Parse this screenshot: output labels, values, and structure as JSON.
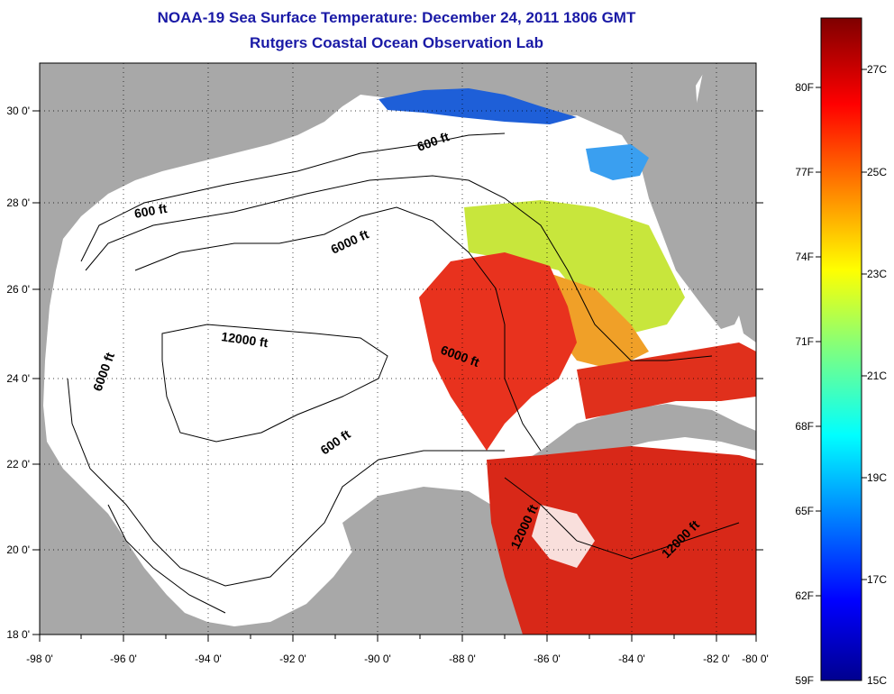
{
  "title": "NOAA-19 Sea Surface Temperature:  December 24, 2011 1806 GMT",
  "subtitle": "Rutgers Coastal Ocean Observation Lab",
  "lon_labels": [
    "-98 0'",
    "-96 0'",
    "-94 0'",
    "-92 0'",
    "-90 0'",
    "-88 0'",
    "-86 0'",
    "-84 0'",
    "-82 0'",
    "-80 0'"
  ],
  "lat_labels": [
    "30 0'",
    "28 0'",
    "26 0'",
    "24 0'",
    "22 0'",
    "20 0'",
    "18 0'"
  ],
  "isobaths": [
    {
      "text": "600 ft"
    },
    {
      "text": "600 ft"
    },
    {
      "text": "600 ft"
    },
    {
      "text": "6000 ft"
    },
    {
      "text": "6000 ft"
    },
    {
      "text": "6000 ft"
    },
    {
      "text": "12000 ft"
    },
    {
      "text": "12000 ft"
    },
    {
      "text": "12000 ft"
    }
  ],
  "colorbar": {
    "f_labels": [
      "80F",
      "77F",
      "74F",
      "71F",
      "68F",
      "65F",
      "62F",
      "59F"
    ],
    "c_labels": [
      "27C",
      "25C",
      "23C",
      "21C",
      "19C",
      "17C",
      "15C"
    ]
  },
  "colors": {
    "land": "#a8a8a8",
    "ocean": "#ffffff",
    "title": "#1a1aa6"
  }
}
